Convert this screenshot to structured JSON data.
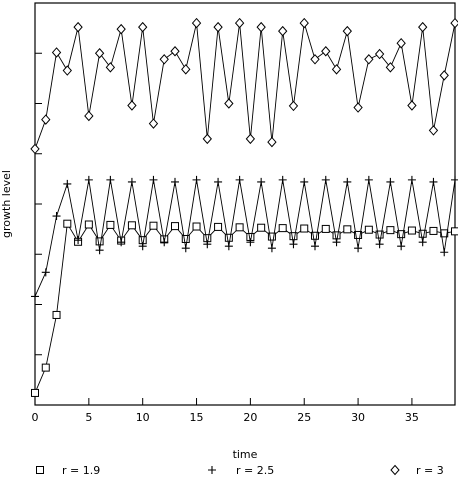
{
  "chart_data": {
    "type": "line",
    "title": "",
    "xlabel": "time",
    "ylabel": "growth level",
    "xlim": [
      0,
      39
    ],
    "ylim": [
      0,
      1
    ],
    "x_ticks": [
      "0",
      "5",
      "10",
      "15",
      "20",
      "25",
      "30",
      "35"
    ],
    "grid": false,
    "legend": "bottom",
    "series": [
      {
        "name": "r = 1.9",
        "marker": "square",
        "values": [
          0.03,
          0.093,
          0.224,
          0.451,
          0.406,
          0.449,
          0.407,
          0.448,
          0.409,
          0.447,
          0.41,
          0.446,
          0.412,
          0.445,
          0.413,
          0.444,
          0.415,
          0.443,
          0.416,
          0.442,
          0.418,
          0.441,
          0.419,
          0.44,
          0.42,
          0.439,
          0.421,
          0.438,
          0.422,
          0.437,
          0.423,
          0.436,
          0.424,
          0.435,
          0.425,
          0.434,
          0.426,
          0.433,
          0.427,
          0.432
        ]
      },
      {
        "name": "r = 2.5",
        "marker": "plus",
        "values": [
          0.27,
          0.33,
          0.47,
          0.55,
          0.41,
          0.56,
          0.385,
          0.56,
          0.405,
          0.555,
          0.395,
          0.56,
          0.405,
          0.555,
          0.39,
          0.56,
          0.4,
          0.555,
          0.395,
          0.56,
          0.405,
          0.555,
          0.39,
          0.56,
          0.4,
          0.555,
          0.395,
          0.56,
          0.405,
          0.555,
          0.39,
          0.56,
          0.4,
          0.555,
          0.395,
          0.56,
          0.405,
          0.555,
          0.38,
          0.56
        ]
      },
      {
        "name": "r = 3",
        "marker": "diamond",
        "values": [
          0.637,
          0.71,
          0.877,
          0.832,
          0.94,
          0.719,
          0.875,
          0.84,
          0.935,
          0.745,
          0.94,
          0.7,
          0.86,
          0.88,
          0.835,
          0.95,
          0.662,
          0.94,
          0.75,
          0.95,
          0.662,
          0.94,
          0.654,
          0.93,
          0.744,
          0.95,
          0.86,
          0.88,
          0.835,
          0.93,
          0.74,
          0.86,
          0.873,
          0.84,
          0.9,
          0.745,
          0.94,
          0.683,
          0.82,
          0.95
        ]
      }
    ]
  }
}
